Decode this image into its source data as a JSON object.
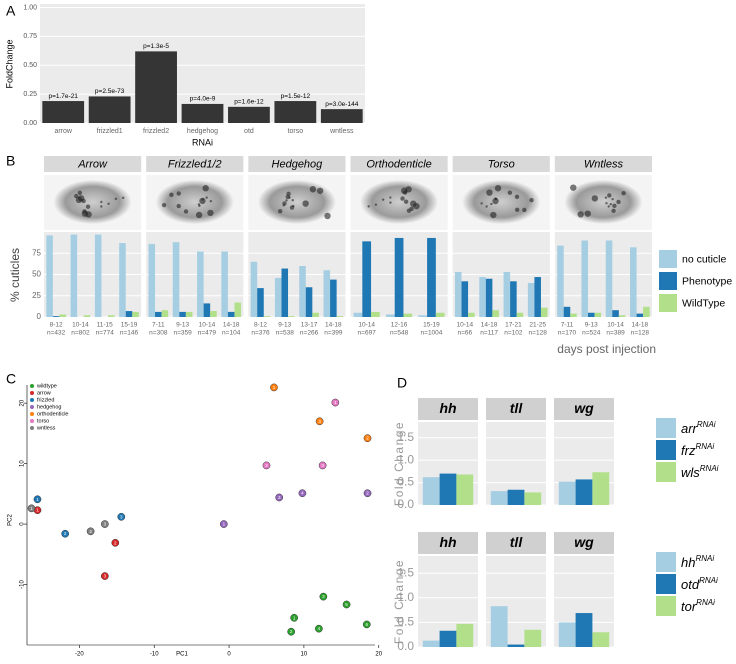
{
  "chart_data": [
    {
      "type": "bar",
      "panel": "A",
      "ylabel": "FoldChange",
      "xlabel": "RNAi",
      "categories": [
        "arrow",
        "frizzled1",
        "frizzled2",
        "hedgehog",
        "otd",
        "torso",
        "wntless"
      ],
      "values": [
        0.19,
        0.23,
        0.62,
        0.165,
        0.14,
        0.19,
        0.12
      ],
      "annotations": [
        "p=1.7e-21",
        "p=2.5e-73",
        "p=1.3e-5",
        "p=4.0e-9",
        "p=1.6e-12",
        "p=1.5e-12",
        "p=3.0e-144"
      ],
      "color": "#353535",
      "ylim": [
        0,
        1.03
      ],
      "yticks": [
        {
          "value": 0,
          "label": "0.00"
        },
        {
          "value": 0.25,
          "label": "0.25"
        },
        {
          "value": 0.5,
          "label": "0.50"
        },
        {
          "value": 0.75,
          "label": "0.75"
        },
        {
          "value": 1,
          "label": "1.00"
        }
      ],
      "grid": true
    },
    {
      "type": "faceted_bar",
      "panel": "B",
      "ylabel": "% cuticles",
      "xlabel": "days post injection",
      "ylim": [
        0,
        100
      ],
      "yticks": [
        0,
        25,
        50,
        75
      ],
      "grid": true,
      "series": [
        {
          "name": "no cuticle",
          "color": "#a6cee3"
        },
        {
          "name": "Phenotype",
          "color": "#1f78b4"
        },
        {
          "name": "WildType",
          "color": "#b2df8a"
        }
      ],
      "facets": [
        {
          "title": "Arrow",
          "categories": [
            "8-12",
            "10-14",
            "11-15",
            "15-19"
          ],
          "sample_sizes": [
            "n=432",
            "n=802",
            "n=774",
            "n=146"
          ],
          "values": [
            [
              96,
              97,
              97,
              87
            ],
            [
              1,
              0,
              0,
              7
            ],
            [
              3,
              2,
              2,
              6
            ]
          ]
        },
        {
          "title": "Frizzled1/2",
          "categories": [
            "7-11",
            "9-13",
            "10-14",
            "14-18"
          ],
          "sample_sizes": [
            "n=308",
            "n=359",
            "n=479",
            "n=104"
          ],
          "values": [
            [
              86,
              88,
              77,
              77
            ],
            [
              6,
              6,
              16,
              6
            ],
            [
              8,
              6,
              7,
              17
            ]
          ]
        },
        {
          "title": "Hedgehog",
          "categories": [
            "8-12",
            "9-13",
            "13-17",
            "14-18"
          ],
          "sample_sizes": [
            "n=376",
            "n=538",
            "n=266",
            "n=399"
          ],
          "values": [
            [
              65,
              46,
              60,
              55
            ],
            [
              34,
              57,
              35,
              44
            ],
            [
              1,
              1,
              5,
              1
            ]
          ]
        },
        {
          "title": "Orthodenticle",
          "categories": [
            "10-14",
            "12-16",
            "15-19"
          ],
          "sample_sizes": [
            "n=697",
            "n=548",
            "n=1004"
          ],
          "values": [
            [
              5,
              3,
              2
            ],
            [
              89,
              93,
              93
            ],
            [
              6,
              4,
              5
            ]
          ]
        },
        {
          "title": "Torso",
          "categories": [
            "10-14",
            "14-18",
            "17-21",
            "21-25"
          ],
          "sample_sizes": [
            "n=66",
            "n=117",
            "n=102",
            "n=128"
          ],
          "values": [
            [
              53,
              47,
              53,
              40
            ],
            [
              42,
              45,
              42,
              47
            ],
            [
              5,
              8,
              5,
              11
            ]
          ]
        },
        {
          "title": "Wntless",
          "categories": [
            "7-11",
            "9-13",
            "10-14",
            "14-18"
          ],
          "sample_sizes": [
            "n=170",
            "n=524",
            "n=389",
            "n=128"
          ],
          "values": [
            [
              84,
              90,
              90,
              82
            ],
            [
              12,
              5,
              8,
              4
            ],
            [
              4,
              5,
              2,
              12
            ]
          ]
        }
      ]
    },
    {
      "type": "scatter",
      "panel": "C",
      "xlabel": "PC1",
      "ylabel": "PC2",
      "xlim": [
        -27,
        19.5
      ],
      "ylim": [
        -20,
        23
      ],
      "xticks": [
        -20,
        -10,
        0,
        10,
        20
      ],
      "yticks": [
        -10,
        0,
        10,
        20
      ],
      "series": [
        {
          "name": "wildtype",
          "color": "#2ca02c",
          "x": [
            8.7,
            8.3,
            12.6,
            12,
            15.7,
            18.4
          ],
          "y": [
            -15.5,
            -17.8,
            -12,
            -17.3,
            -13.3,
            -16.6
          ],
          "labels": [
            "1",
            "2",
            "3",
            "4",
            "5",
            "6"
          ]
        },
        {
          "name": "arrow",
          "color": "#d62728",
          "x": [
            -25.6,
            -15.2,
            -16.6
          ],
          "y": [
            2.3,
            -3.1,
            -8.6
          ],
          "labels": [
            "1",
            "2",
            "3"
          ]
        },
        {
          "name": "frizzled",
          "color": "#1f77b4",
          "x": [
            -25.6,
            -21.9,
            -14.4
          ],
          "y": [
            4.1,
            -1.6,
            1.2
          ],
          "labels": [
            "1",
            "2",
            "3"
          ]
        },
        {
          "name": "hedgehog",
          "color": "#9467bd",
          "x": [
            -0.7,
            6.7,
            9.8,
            18.5
          ],
          "y": [
            0,
            4.4,
            5.1,
            5.1
          ],
          "labels": [
            "1",
            "3",
            "4",
            "2"
          ]
        },
        {
          "name": "orthodenticle",
          "color": "#ff7f0e",
          "x": [
            6,
            12.1,
            18.5
          ],
          "y": [
            22.6,
            17,
            14.2
          ],
          "labels": [
            "1",
            "3",
            "2"
          ]
        },
        {
          "name": "torso",
          "color": "#e377c2",
          "x": [
            14.2,
            5,
            12.5
          ],
          "y": [
            20.1,
            9.7,
            9.7
          ],
          "labels": [
            "1",
            "2",
            "3"
          ]
        },
        {
          "name": "wntless",
          "color": "#7f7f7f",
          "x": [
            -26.4,
            -18.5,
            -16.6
          ],
          "y": [
            2.6,
            -1.2,
            0
          ],
          "labels": [
            "1",
            "2",
            "3"
          ]
        }
      ]
    },
    {
      "type": "faceted_bar_single",
      "panel": "D",
      "ylabel": "Fold Change",
      "ylim": [
        0,
        1.85
      ],
      "yticks": [
        {
          "value": 0,
          "label": "0.0"
        },
        0.5,
        {
          "value": 1,
          "label": "1.0"
        },
        1.5
      ],
      "grid": true,
      "series": [
        {
          "name": "arr",
          "name_sup": "RNAi",
          "color": "#a6cee3"
        },
        {
          "name": "frz",
          "name_sup": "RNAi",
          "color": "#1f78b4"
        },
        {
          "name": "wls",
          "name_sup": "RNAi",
          "color": "#b2df8a"
        }
      ],
      "facets": [
        {
          "title": "hh",
          "values": [
            0.62,
            0.7,
            0.68
          ]
        },
        {
          "title": "tll",
          "values": [
            0.31,
            0.34,
            0.28
          ]
        },
        {
          "title": "wg",
          "values": [
            0.52,
            0.57,
            0.73
          ]
        }
      ]
    },
    {
      "type": "faceted_bar_single",
      "ylabel": "Fold Change",
      "ylim": [
        0,
        1.85
      ],
      "yticks": [
        {
          "value": 0,
          "label": "0.0"
        },
        0.5,
        {
          "value": 1,
          "label": "1.0"
        },
        1.5
      ],
      "grid": true,
      "series": [
        {
          "name": "hh",
          "name_sup": "RNAi",
          "color": "#a6cee3"
        },
        {
          "name": "otd",
          "name_sup": "RNAi",
          "color": "#1f78b4"
        },
        {
          "name": "tor",
          "name_sup": "RNAi",
          "color": "#b2df8a"
        }
      ],
      "facets": [
        {
          "title": "hh",
          "values": [
            0.13,
            0.33,
            0.47
          ]
        },
        {
          "title": "tll",
          "values": [
            0.83,
            0.05,
            0.35
          ]
        },
        {
          "title": "wg",
          "values": [
            0.5,
            0.69,
            0.3
          ]
        }
      ]
    }
  ]
}
